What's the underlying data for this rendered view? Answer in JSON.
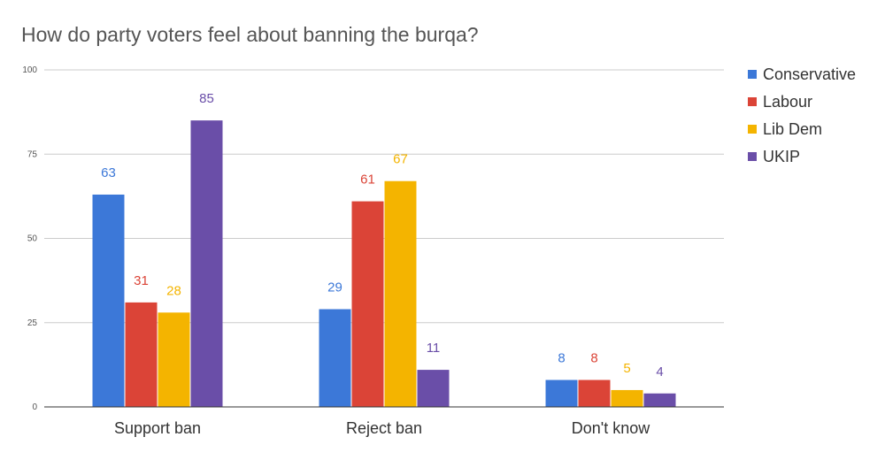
{
  "chart_data": {
    "type": "bar",
    "title": "How do party voters feel about banning the burqa?",
    "categories": [
      "Support ban",
      "Reject ban",
      "Don't know"
    ],
    "series": [
      {
        "name": "Conservative",
        "values": [
          63,
          29,
          8
        ],
        "color": "#3c78d8"
      },
      {
        "name": "Labour",
        "values": [
          31,
          61,
          8
        ],
        "color": "#db4437"
      },
      {
        "name": "Lib Dem",
        "values": [
          28,
          67,
          5
        ],
        "color": "#f4b400"
      },
      {
        "name": "UKIP",
        "values": [
          85,
          11,
          4
        ],
        "color": "#6a4ea8"
      }
    ],
    "ylim": [
      0,
      100
    ],
    "yticks": [
      0,
      25,
      50,
      75,
      100
    ],
    "xlabel": "",
    "ylabel": "",
    "grid": true,
    "legend": "right"
  }
}
